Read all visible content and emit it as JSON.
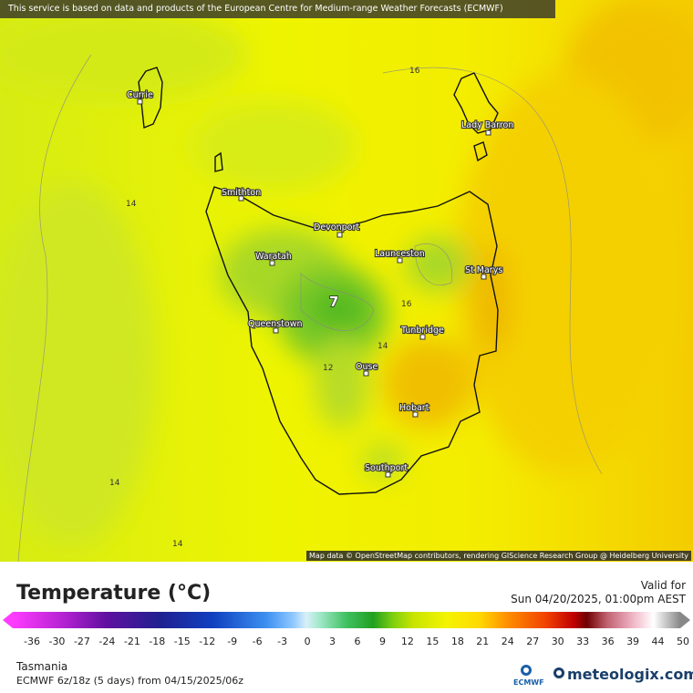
{
  "header": {
    "banner": "This service is based on data and products of the European Centre for Medium-range Weather Forecasts (ECMWF)"
  },
  "map": {
    "attribution": "Map data © OpenStreetMap contributors, rendering GIScience Research Group @ Heidelberg University",
    "places": [
      "Currie",
      "Lady Barron",
      "Smithton",
      "Devonport",
      "Launceston",
      "Waratah",
      "St Marys",
      "Queenstown",
      "Tunbridge",
      "Ouse",
      "Hobart",
      "Southport"
    ],
    "contour_labels": [
      "16",
      "14",
      "16",
      "7",
      "14",
      "12",
      "14",
      "14"
    ]
  },
  "legend": {
    "title": "Temperature (°C)",
    "valid_label": "Valid for",
    "valid_time": "Sun 04/20/2025, 01:00pm AEST",
    "ticks": [
      -36,
      -30,
      -27,
      -24,
      -21,
      -18,
      -15,
      -12,
      -9,
      -6,
      -3,
      0,
      3,
      6,
      9,
      12,
      15,
      18,
      21,
      24,
      27,
      30,
      33,
      36,
      39,
      44,
      50
    ]
  },
  "footer": {
    "region": "Tasmania",
    "model_run": "ECMWF 6z/18z (5 days) from  04/15/2025/06z",
    "logo": "ECMWF",
    "brand": "meteologix.com"
  }
}
